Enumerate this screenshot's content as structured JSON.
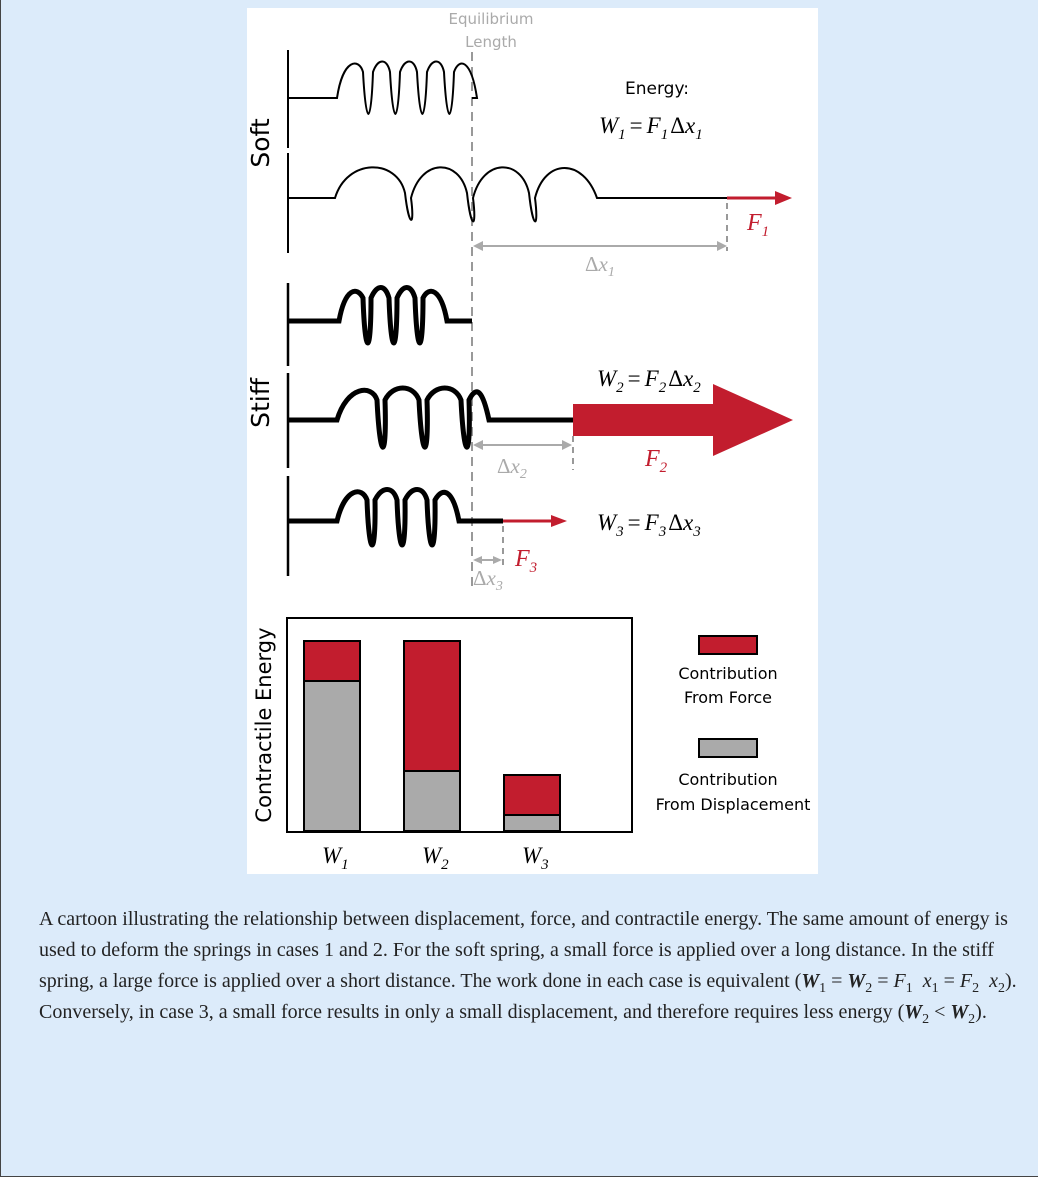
{
  "figure": {
    "equilibrium_label_1": "Equilibrium",
    "equilibrium_label_2": "Length",
    "label_soft": "Soft",
    "label_stiff": "Stiff",
    "energy_label": "Energy:",
    "eq1": {
      "W": "W",
      "Wsub": "1",
      "eq": "=",
      "F": "F",
      "Fsub": "1",
      "delta": "Δ",
      "x": "x",
      "xsub": "1"
    },
    "eq2": {
      "W": "W",
      "Wsub": "2",
      "eq": "=",
      "F": "F",
      "Fsub": "2",
      "delta": "Δ",
      "x": "x",
      "xsub": "2"
    },
    "eq3": {
      "W": "W",
      "Wsub": "3",
      "eq": "=",
      "F": "F",
      "Fsub": "3",
      "delta": "Δ",
      "x": "x",
      "xsub": "3"
    },
    "force1": {
      "F": "F",
      "sub": "1"
    },
    "force2": {
      "F": "F",
      "sub": "2"
    },
    "force3": {
      "F": "F",
      "sub": "3"
    },
    "dx1": {
      "delta": "Δ",
      "x": "x",
      "sub": "1"
    },
    "dx2": {
      "delta": "Δ",
      "x": "x",
      "sub": "2"
    },
    "dx3": {
      "delta": "Δ",
      "x": "x",
      "sub": "3"
    },
    "colors": {
      "red": "#c21d2e",
      "gray": "#aaaaaa",
      "dashed": "#999999"
    }
  },
  "chart_data": {
    "type": "bar",
    "stacked": true,
    "ylabel": "Contractile Energy",
    "categories": [
      "W1",
      "W2",
      "W3"
    ],
    "category_labels": [
      {
        "main": "W",
        "sub": "1"
      },
      {
        "main": "W",
        "sub": "2"
      },
      {
        "main": "W",
        "sub": "3"
      }
    ],
    "series": [
      {
        "name": "Contribution From Displacement",
        "name_line1": "Contribution",
        "name_line2": "From Displacement",
        "color": "#aaaaaa",
        "values": [
          75,
          30,
          8
        ]
      },
      {
        "name": "Contribution From Force",
        "name_line1": "Contribution",
        "name_line2": "From Force",
        "color": "#c21d2e",
        "values": [
          20,
          65,
          20
        ]
      }
    ],
    "ylim": [
      0,
      100
    ],
    "grid": false,
    "legend": "right"
  },
  "caption": {
    "p1": "A cartoon illustrating the relationship between displacement, force, and contractile energy. The same amount of energy is used to deform the springs in cases 1 and 2. For the soft spring, a small force is applied over a long distance. In the stiff spring, a large force is applied over a short distance. The work done in each case is equivalent (",
    "W": "W",
    "F": "F",
    "x": "x",
    "s1": "1",
    "s2": "2",
    "eq": " = ",
    "p2": "). Conversely, in case 3, a small force results in only a small displacement, and therefore requires less energy (",
    "lt": " < ",
    "p3": ")."
  }
}
